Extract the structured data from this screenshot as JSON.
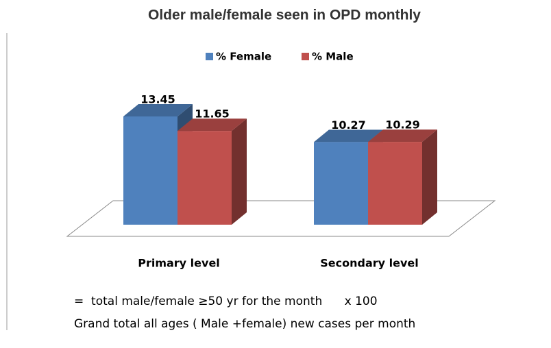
{
  "chart_data": {
    "type": "bar3d",
    "title": "Older male/female seen in OPD monthly",
    "categories": [
      "Primary level",
      "Secondary level"
    ],
    "series": [
      {
        "name": "% Female",
        "color": "#4f81bd",
        "values": [
          13.45,
          10.27
        ]
      },
      {
        "name": "% Male",
        "color": "#c0504d",
        "values": [
          11.65,
          10.29
        ]
      }
    ],
    "annotations": [
      "=  total male/female ≥50 yr for the month      x 100",
      "Grand total all ages ( Male +female) new cases per month"
    ]
  }
}
